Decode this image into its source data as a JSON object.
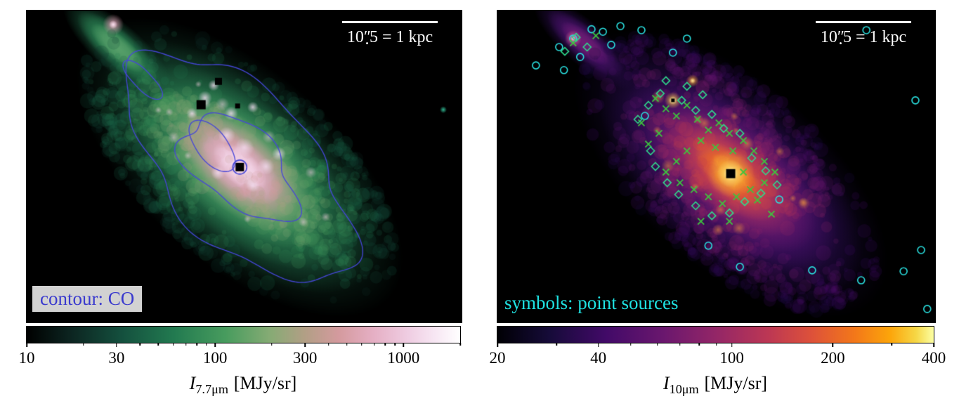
{
  "panels": [
    {
      "name": "7.7 micron image with CO contours",
      "scalebar": {
        "prefix": "10",
        "prime": "″",
        "dot": ".",
        "suffix": "5",
        "rest": " = 1 kpc"
      },
      "annotation": "contour: CO",
      "annotation_color": "#3a3ace",
      "annotation_bg": "#d2d2d2",
      "axis_label": {
        "symbol": "I",
        "subscript": "7.7μm",
        "unit": "[MJy/sr]"
      }
    },
    {
      "name": "10 micron image with point sources",
      "scalebar": {
        "prefix": "10",
        "prime": "″",
        "dot": ".",
        "suffix": "5",
        "rest": " = 1 kpc"
      },
      "annotation": "symbols: point sources",
      "annotation_color": "#1fe2e2",
      "axis_label": {
        "symbol": "I",
        "subscript": "10μm",
        "unit": "[MJy/sr]"
      }
    }
  ],
  "chart_data": [
    {
      "type": "heatmap",
      "band": "7.7 micron",
      "seed": 11,
      "scalebar": {
        "arcsec": 10.5,
        "kpc": 1
      },
      "colorbar": {
        "scale": "log",
        "vmin": 10,
        "vmax": 2000,
        "ticks": [
          "10",
          "30",
          "100",
          "300",
          "1000"
        ]
      },
      "colormap": [
        [
          0,
          "#000000"
        ],
        [
          0.1,
          "#0c2420"
        ],
        [
          0.22,
          "#14503e"
        ],
        [
          0.34,
          "#227a50"
        ],
        [
          0.46,
          "#489c5e"
        ],
        [
          0.56,
          "#85ab74"
        ],
        [
          0.64,
          "#b19f85"
        ],
        [
          0.72,
          "#d49a9e"
        ],
        [
          0.8,
          "#e5afc4"
        ],
        [
          0.88,
          "#efcde2"
        ],
        [
          0.94,
          "#f7e6f3"
        ],
        [
          1,
          "#ffffff"
        ]
      ],
      "galaxy": {
        "center": [
          0.49,
          0.502
        ],
        "pa_deg": 41,
        "layers": [
          [
            0.46,
            0.225,
            "#14402d"
          ],
          [
            0.385,
            0.19,
            "#1d6142"
          ],
          [
            0.315,
            0.155,
            "#2c8352"
          ],
          [
            0.25,
            0.125,
            "#52a068"
          ],
          [
            0.2,
            0.1,
            "#9aab80"
          ],
          [
            0.16,
            0.08,
            "#cc96a4"
          ],
          [
            0.115,
            0.058,
            "#e6b3ca"
          ],
          [
            0.075,
            0.038,
            "#f6dcee"
          ]
        ]
      },
      "noise": {
        "count": 1500,
        "phase": 0.0
      },
      "arm_knots": {
        "count": 12,
        "color": "#f2cfe0"
      },
      "clumps": [
        [
          0.5,
          0.44,
          14
        ],
        [
          0.46,
          0.4,
          12
        ],
        [
          0.55,
          0.5,
          12
        ],
        [
          0.52,
          0.56,
          10
        ],
        [
          0.44,
          0.52,
          10
        ],
        [
          0.58,
          0.46,
          10
        ],
        [
          0.47,
          0.33,
          10
        ],
        [
          0.52,
          0.31,
          8
        ],
        [
          0.41,
          0.28,
          10
        ],
        [
          0.38,
          0.33,
          8
        ],
        [
          0.43,
          0.24,
          8
        ]
      ],
      "clump_color": "#f3ddf0",
      "plume": {
        "center": [
          0.21,
          0.12
        ],
        "layers": [
          [
            0.16,
            0.055,
            "#1d6142"
          ],
          [
            0.12,
            0.04,
            "#2c8352"
          ],
          [
            0.08,
            0.028,
            "#58a06a"
          ]
        ],
        "spot": [
          0.199,
          0.045,
          15,
          "#e8a0b8"
        ],
        "spot_core": [
          0.199,
          0.045,
          6,
          "#f8e4f0"
        ]
      },
      "extra_blobs": [
        [
          0.958,
          0.318,
          5,
          "#35c9a0"
        ]
      ],
      "masked_squares": [
        [
          0.441,
          0.227,
          10
        ],
        [
          0.401,
          0.302,
          13
        ],
        [
          0.485,
          0.306,
          7
        ],
        [
          0.49,
          0.502,
          12
        ]
      ],
      "center_ring": [
        0.49,
        0.502,
        10
      ],
      "contours": {
        "label": "CO",
        "color": "#4646d8",
        "loops": [
          {
            "rx": 0.155,
            "ry": 0.088,
            "w": [
              [
                0.12,
                3,
                1.0
              ],
              [
                0.08,
                5,
                2.3
              ]
            ]
          },
          {
            "rx": 0.065,
            "ry": 0.038,
            "cx": -0.08,
            "cy": 0.005,
            "w": [
              [
                0.15,
                2,
                0.4
              ]
            ]
          },
          {
            "rx": 0.315,
            "ry": 0.175,
            "w": [
              [
                0.09,
                2,
                0.5
              ],
              [
                0.06,
                4,
                1.7
              ],
              [
                0.05,
                7,
                3.1
              ]
            ]
          },
          {
            "rx": 0.05,
            "ry": 0.025,
            "cx": -0.3,
            "cy": -0.005,
            "w": [
              [
                0.2,
                2,
                1.1
              ]
            ]
          }
        ]
      }
    },
    {
      "type": "heatmap",
      "band": "10 micron",
      "seed": 23,
      "scalebar": {
        "arcsec": 10.5,
        "kpc": 1
      },
      "colorbar": {
        "scale": "log",
        "vmin": 20,
        "vmax": 400,
        "ticks": [
          "20",
          "40",
          "100",
          "200",
          "400"
        ]
      },
      "colormap": [
        [
          0,
          "#000004"
        ],
        [
          0.12,
          "#160b39"
        ],
        [
          0.25,
          "#420a68"
        ],
        [
          0.38,
          "#6a176e"
        ],
        [
          0.5,
          "#932667"
        ],
        [
          0.62,
          "#bc3754"
        ],
        [
          0.72,
          "#dd513a"
        ],
        [
          0.82,
          "#f37819"
        ],
        [
          0.9,
          "#fca50a"
        ],
        [
          0.96,
          "#f6d746"
        ],
        [
          1,
          "#fcffa4"
        ]
      ],
      "galaxy": {
        "center": [
          0.533,
          0.523
        ],
        "pa_deg": 41,
        "layers": [
          [
            0.44,
            0.215,
            "#1a0a38"
          ],
          [
            0.37,
            0.18,
            "#330c5c"
          ],
          [
            0.3,
            0.147,
            "#531370"
          ],
          [
            0.24,
            0.118,
            "#7a1e6c"
          ],
          [
            0.19,
            0.093,
            "#a62f60"
          ],
          [
            0.145,
            0.071,
            "#cf4649"
          ],
          [
            0.1,
            0.049,
            "#ec7127"
          ],
          [
            0.06,
            0.029,
            "#f9a02c"
          ]
        ]
      },
      "noise": {
        "count": 1500,
        "phase": 2.0
      },
      "arm_knots": {
        "count": 16,
        "color": "#f09040"
      },
      "core": [
        [
          0.533,
          0.523,
          34,
          "#f6b23c"
        ],
        [
          0.533,
          0.523,
          20,
          "#fde27a"
        ],
        [
          0.533,
          0.523,
          10,
          "#fff6c0"
        ]
      ],
      "plume": {
        "center": [
          0.2,
          0.105
        ],
        "layers": [
          [
            0.15,
            0.05,
            "#2a0c4c"
          ],
          [
            0.11,
            0.036,
            "#4a1268"
          ],
          [
            0.07,
            0.025,
            "#6f1d74"
          ]
        ],
        "spot": [
          0.173,
          0.09,
          12,
          "#e06a9a"
        ],
        "spot_core": [
          0.173,
          0.09,
          4,
          "#ffd9e8"
        ]
      },
      "extra_blobs": [
        [
          0.401,
          0.288,
          12,
          "#f9c84a"
        ],
        [
          0.401,
          0.288,
          6,
          "#fff1b0"
        ],
        [
          0.446,
          0.225,
          9,
          "#f2a23c"
        ],
        [
          0.446,
          0.225,
          4,
          "#ffe9a0"
        ]
      ],
      "masked_squares": [
        [
          0.533,
          0.523,
          13
        ],
        [
          0.401,
          0.288,
          5
        ]
      ],
      "markers": {
        "label": "point sources",
        "colors": {
          "circle": "#2ae2e2",
          "cross": "#3ec43e",
          "diamond": "#2fd98c"
        },
        "circles": [
          [
            0.141,
            0.117
          ],
          [
            0.173,
            0.09
          ],
          [
            0.241,
            0.068
          ],
          [
            0.281,
            0.05
          ],
          [
            0.329,
            0.063
          ],
          [
            0.189,
            0.149
          ],
          [
            0.152,
            0.191
          ],
          [
            0.401,
            0.135
          ],
          [
            0.433,
            0.09
          ],
          [
            0.088,
            0.176
          ],
          [
            0.955,
            0.288
          ],
          [
            0.968,
            0.768
          ],
          [
            0.928,
            0.836
          ],
          [
            0.831,
            0.865
          ],
          [
            0.719,
            0.833
          ],
          [
            0.482,
            0.754
          ],
          [
            0.554,
            0.822
          ],
          [
            0.337,
            0.338
          ],
          [
            0.843,
            0.063
          ],
          [
            0.644,
            0.606
          ],
          [
            0.982,
            0.957
          ],
          [
            0.26,
            0.11
          ],
          [
            0.215,
            0.06
          ]
        ],
        "crosses": [
          [
            0.361,
            0.282
          ],
          [
            0.385,
            0.315
          ],
          [
            0.409,
            0.338
          ],
          [
            0.433,
            0.304
          ],
          [
            0.457,
            0.349
          ],
          [
            0.482,
            0.383
          ],
          [
            0.506,
            0.36
          ],
          [
            0.53,
            0.394
          ],
          [
            0.465,
            0.417
          ],
          [
            0.498,
            0.439
          ],
          [
            0.538,
            0.45
          ],
          [
            0.562,
            0.417
          ],
          [
            0.586,
            0.45
          ],
          [
            0.61,
            0.484
          ],
          [
            0.634,
            0.518
          ],
          [
            0.433,
            0.45
          ],
          [
            0.409,
            0.484
          ],
          [
            0.385,
            0.518
          ],
          [
            0.417,
            0.552
          ],
          [
            0.449,
            0.574
          ],
          [
            0.482,
            0.597
          ],
          [
            0.514,
            0.619
          ],
          [
            0.546,
            0.597
          ],
          [
            0.578,
            0.574
          ],
          [
            0.61,
            0.552
          ],
          [
            0.369,
            0.394
          ],
          [
            0.345,
            0.428
          ],
          [
            0.329,
            0.36
          ],
          [
            0.562,
            0.518
          ],
          [
            0.594,
            0.608
          ],
          [
            0.626,
            0.653
          ],
          [
            0.53,
            0.676
          ],
          [
            0.465,
            0.676
          ],
          [
            0.225,
            0.081
          ],
          [
            0.173,
            0.104
          ]
        ],
        "diamonds": [
          [
            0.372,
            0.266
          ],
          [
            0.421,
            0.288
          ],
          [
            0.453,
            0.32
          ],
          [
            0.49,
            0.333
          ],
          [
            0.517,
            0.378
          ],
          [
            0.554,
            0.394
          ],
          [
            0.469,
            0.27
          ],
          [
            0.433,
            0.243
          ],
          [
            0.385,
            0.225
          ],
          [
            0.345,
            0.304
          ],
          [
            0.321,
            0.349
          ],
          [
            0.581,
            0.473
          ],
          [
            0.613,
            0.514
          ],
          [
            0.639,
            0.559
          ],
          [
            0.602,
            0.586
          ],
          [
            0.565,
            0.613
          ],
          [
            0.53,
            0.649
          ],
          [
            0.49,
            0.658
          ],
          [
            0.453,
            0.626
          ],
          [
            0.414,
            0.59
          ],
          [
            0.388,
            0.552
          ],
          [
            0.361,
            0.5
          ],
          [
            0.35,
            0.45
          ],
          [
            0.18,
            0.086
          ],
          [
            0.154,
            0.131
          ],
          [
            0.205,
            0.117
          ]
        ]
      }
    }
  ]
}
